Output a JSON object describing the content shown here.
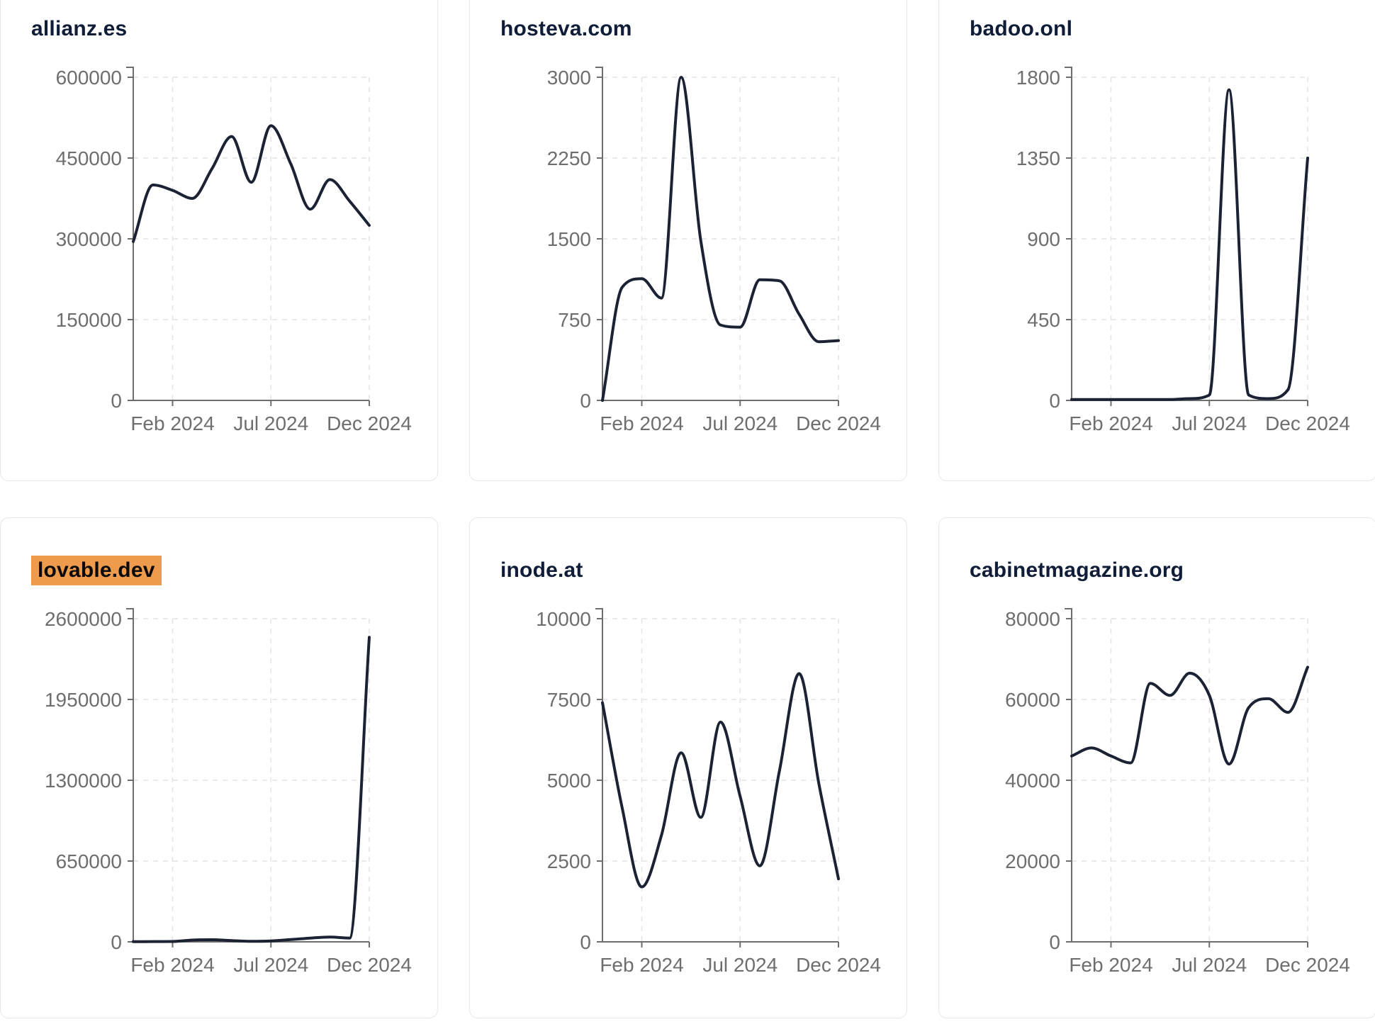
{
  "colors": {
    "background": "#ffffff",
    "card_border": "#e7e7ea",
    "line": "#1b2233",
    "title": "#0f1d38",
    "highlight_background": "#ee9b4e",
    "highlight_text": "#0a0a0a",
    "tick_label": "#6e6e6e",
    "axis": "#6e6e6e",
    "grid": "#e4e4e7"
  },
  "chart_data": [
    {
      "type": "line",
      "title": "allianz.es",
      "highlighted": false,
      "x": [
        "Dec 2023",
        "Jan 2024",
        "Feb 2024",
        "Mar 2024",
        "Apr 2024",
        "May 2024",
        "Jun 2024",
        "Jul 2024",
        "Aug 2024",
        "Sep 2024",
        "Oct 2024",
        "Nov 2024",
        "Dec 2024"
      ],
      "values": [
        295000,
        400000,
        390000,
        375000,
        430000,
        490000,
        405000,
        510000,
        440000,
        355000,
        410000,
        370000,
        325000
      ],
      "ylim": [
        0,
        600000
      ],
      "y_ticks": [
        0,
        150000,
        300000,
        450000,
        600000
      ],
      "x_tick_labels": [
        "Feb 2024",
        "Jul 2024",
        "Dec 2024"
      ],
      "x_tick_indices": [
        2,
        7,
        12
      ],
      "grid": true,
      "legend": "none"
    },
    {
      "type": "line",
      "title": "hosteva.com",
      "highlighted": false,
      "x": [
        "Dec 2023",
        "Jan 2024",
        "Feb 2024",
        "Mar 2024",
        "Apr 2024",
        "May 2024",
        "Jun 2024",
        "Jul 2024",
        "Aug 2024",
        "Sep 2024",
        "Oct 2024",
        "Nov 2024",
        "Dec 2024"
      ],
      "values": [
        0,
        1050,
        1130,
        950,
        3000,
        1480,
        700,
        680,
        1120,
        1110,
        800,
        545,
        555
      ],
      "ylim": [
        0,
        3000
      ],
      "y_ticks": [
        0,
        750,
        1500,
        2250,
        3000
      ],
      "x_tick_labels": [
        "Feb 2024",
        "Jul 2024",
        "Dec 2024"
      ],
      "x_tick_indices": [
        2,
        7,
        12
      ],
      "grid": true,
      "legend": "none"
    },
    {
      "type": "line",
      "title": "badoo.onl",
      "highlighted": false,
      "x": [
        "Dec 2023",
        "Jan 2024",
        "Feb 2024",
        "Mar 2024",
        "Apr 2024",
        "May 2024",
        "Jun 2024",
        "Jul 2024",
        "Aug 2024",
        "Sep 2024",
        "Oct 2024",
        "Nov 2024",
        "Dec 2024"
      ],
      "values": [
        5,
        5,
        5,
        5,
        5,
        5,
        10,
        30,
        1730,
        30,
        10,
        60,
        1350
      ],
      "ylim": [
        0,
        1800
      ],
      "y_ticks": [
        0,
        450,
        900,
        1350,
        1800
      ],
      "x_tick_labels": [
        "Feb 2024",
        "Jul 2024",
        "Dec 2024"
      ],
      "x_tick_indices": [
        2,
        7,
        12
      ],
      "grid": true,
      "legend": "none"
    },
    {
      "type": "line",
      "title": "lovable.dev",
      "highlighted": true,
      "x": [
        "Dec 2023",
        "Jan 2024",
        "Feb 2024",
        "Mar 2024",
        "Apr 2024",
        "May 2024",
        "Jun 2024",
        "Jul 2024",
        "Aug 2024",
        "Sep 2024",
        "Oct 2024",
        "Nov 2024",
        "Dec 2024"
      ],
      "values": [
        1000,
        2000,
        3000,
        14000,
        17000,
        10000,
        4000,
        7000,
        18000,
        30000,
        38000,
        30000,
        2450000
      ],
      "ylim": [
        0,
        2600000
      ],
      "y_ticks": [
        0,
        650000,
        1300000,
        1950000,
        2600000
      ],
      "x_tick_labels": [
        "Feb 2024",
        "Jul 2024",
        "Dec 2024"
      ],
      "x_tick_indices": [
        2,
        7,
        12
      ],
      "grid": true,
      "legend": "none"
    },
    {
      "type": "line",
      "title": "inode.at",
      "highlighted": false,
      "x": [
        "Dec 2023",
        "Jan 2024",
        "Feb 2024",
        "Mar 2024",
        "Apr 2024",
        "May 2024",
        "Jun 2024",
        "Jul 2024",
        "Aug 2024",
        "Sep 2024",
        "Oct 2024",
        "Nov 2024",
        "Dec 2024"
      ],
      "values": [
        7400,
        4150,
        1700,
        3300,
        5850,
        3850,
        6800,
        4500,
        2350,
        5300,
        8300,
        4900,
        1950
      ],
      "ylim": [
        0,
        10000
      ],
      "y_ticks": [
        0,
        2500,
        5000,
        7500,
        10000
      ],
      "x_tick_labels": [
        "Feb 2024",
        "Jul 2024",
        "Dec 2024"
      ],
      "x_tick_indices": [
        2,
        7,
        12
      ],
      "grid": true,
      "legend": "none"
    },
    {
      "type": "line",
      "title": "cabinetmagazine.org",
      "highlighted": false,
      "x": [
        "Dec 2023",
        "Jan 2024",
        "Feb 2024",
        "Mar 2024",
        "Apr 2024",
        "May 2024",
        "Jun 2024",
        "Jul 2024",
        "Aug 2024",
        "Sep 2024",
        "Oct 2024",
        "Nov 2024",
        "Dec 2024"
      ],
      "values": [
        46000,
        48000,
        46000,
        44300,
        64000,
        61000,
        66500,
        61000,
        44000,
        58000,
        60200,
        56800,
        68000
      ],
      "ylim": [
        0,
        80000
      ],
      "y_ticks": [
        0,
        20000,
        40000,
        60000,
        80000
      ],
      "x_tick_labels": [
        "Feb 2024",
        "Jul 2024",
        "Dec 2024"
      ],
      "x_tick_indices": [
        2,
        7,
        12
      ],
      "grid": true,
      "legend": "none"
    }
  ]
}
